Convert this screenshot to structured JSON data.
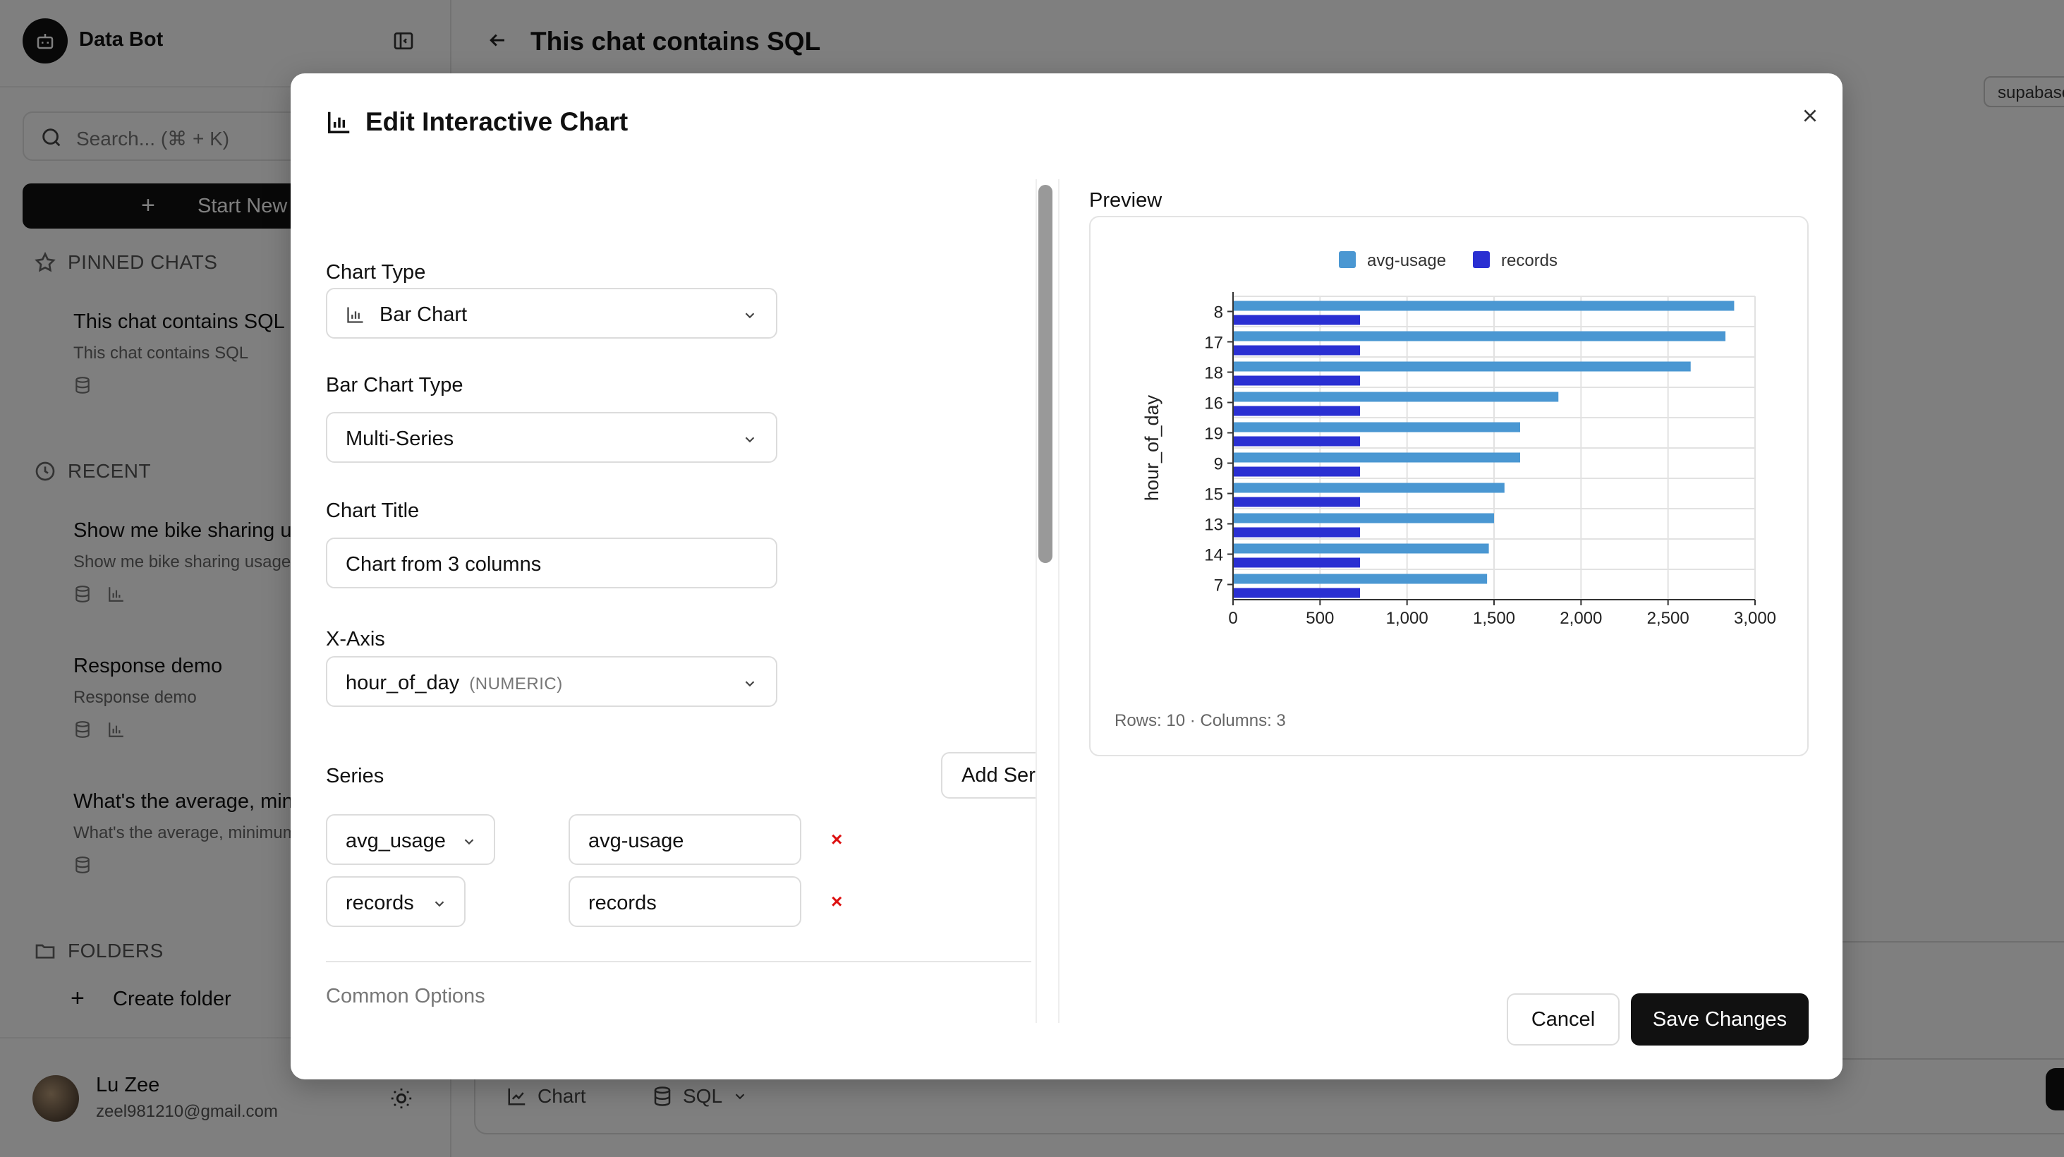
{
  "app": {
    "name": "Data Bot",
    "search_placeholder": "Search... (⌘ + K)",
    "new_chat_label": "Start New Chat",
    "pinned_heading": "PINNED CHATS",
    "recent_heading": "RECENT",
    "folders_heading": "FOLDERS",
    "create_folder_label": "Create folder",
    "pinned": [
      {
        "title": "This chat contains SQL",
        "subtitle": "This chat contains SQL",
        "icons": [
          "database-icon"
        ]
      }
    ],
    "recent": [
      {
        "title": "Show me bike sharing usage",
        "subtitle": "Show me bike sharing usage",
        "icons": [
          "database-icon",
          "bar-chart-icon"
        ]
      },
      {
        "title": "Response demo",
        "subtitle": "Response demo",
        "icons": [
          "database-icon",
          "bar-chart-icon"
        ]
      },
      {
        "title": "What's the average, minimum",
        "subtitle": "What's the average, minimum",
        "icons": [
          "database-icon"
        ]
      }
    ],
    "user": {
      "name": "Lu Zee",
      "email": "zeel981210@gmail.com"
    }
  },
  "main": {
    "title": "This chat contains SQL",
    "tag": "supabase",
    "bottom_tabs": {
      "chart": "Chart",
      "sql": "SQL"
    }
  },
  "modal": {
    "title": "Edit Interactive Chart",
    "chart_type_label": "Chart Type",
    "chart_type_value": "Bar Chart",
    "bar_type_label": "Bar Chart Type",
    "bar_type_value": "Multi-Series",
    "chart_title_label": "Chart Title",
    "chart_title_value": "Chart from 3 columns",
    "x_axis_label": "X-Axis",
    "x_axis_value": "hour_of_day",
    "x_axis_type": "(NUMERIC)",
    "series_label": "Series",
    "add_series_label": "Add Series",
    "series": [
      {
        "column": "avg_usage",
        "name": "avg-usage"
      },
      {
        "column": "records",
        "name": "records"
      }
    ],
    "remove_symbol": "×",
    "common_options_label": "Common Options",
    "preview_label": "Preview",
    "rows_info": "Rows: 10 · Columns: 3",
    "cancel_label": "Cancel",
    "save_label": "Save Changes"
  },
  "chart_data": {
    "type": "bar",
    "orientation": "horizontal",
    "categories": [
      "8",
      "17",
      "18",
      "16",
      "19",
      "9",
      "15",
      "13",
      "14",
      "7"
    ],
    "series": [
      {
        "name": "avg-usage",
        "color": "#4a97d2",
        "values": [
          2880,
          2830,
          2630,
          1870,
          1650,
          1650,
          1560,
          1500,
          1470,
          1460
        ]
      },
      {
        "name": "records",
        "color": "#2a2fd2",
        "values": [
          730,
          730,
          730,
          730,
          730,
          730,
          730,
          730,
          730,
          730
        ]
      }
    ],
    "ylabel": "hour_of_day",
    "xlabel": "",
    "xlim": [
      0,
      3000
    ],
    "xticks": [
      "0",
      "500",
      "1,000",
      "1,500",
      "2,000",
      "2,500",
      "3,000"
    ],
    "grid": true,
    "legend": "top-center"
  }
}
